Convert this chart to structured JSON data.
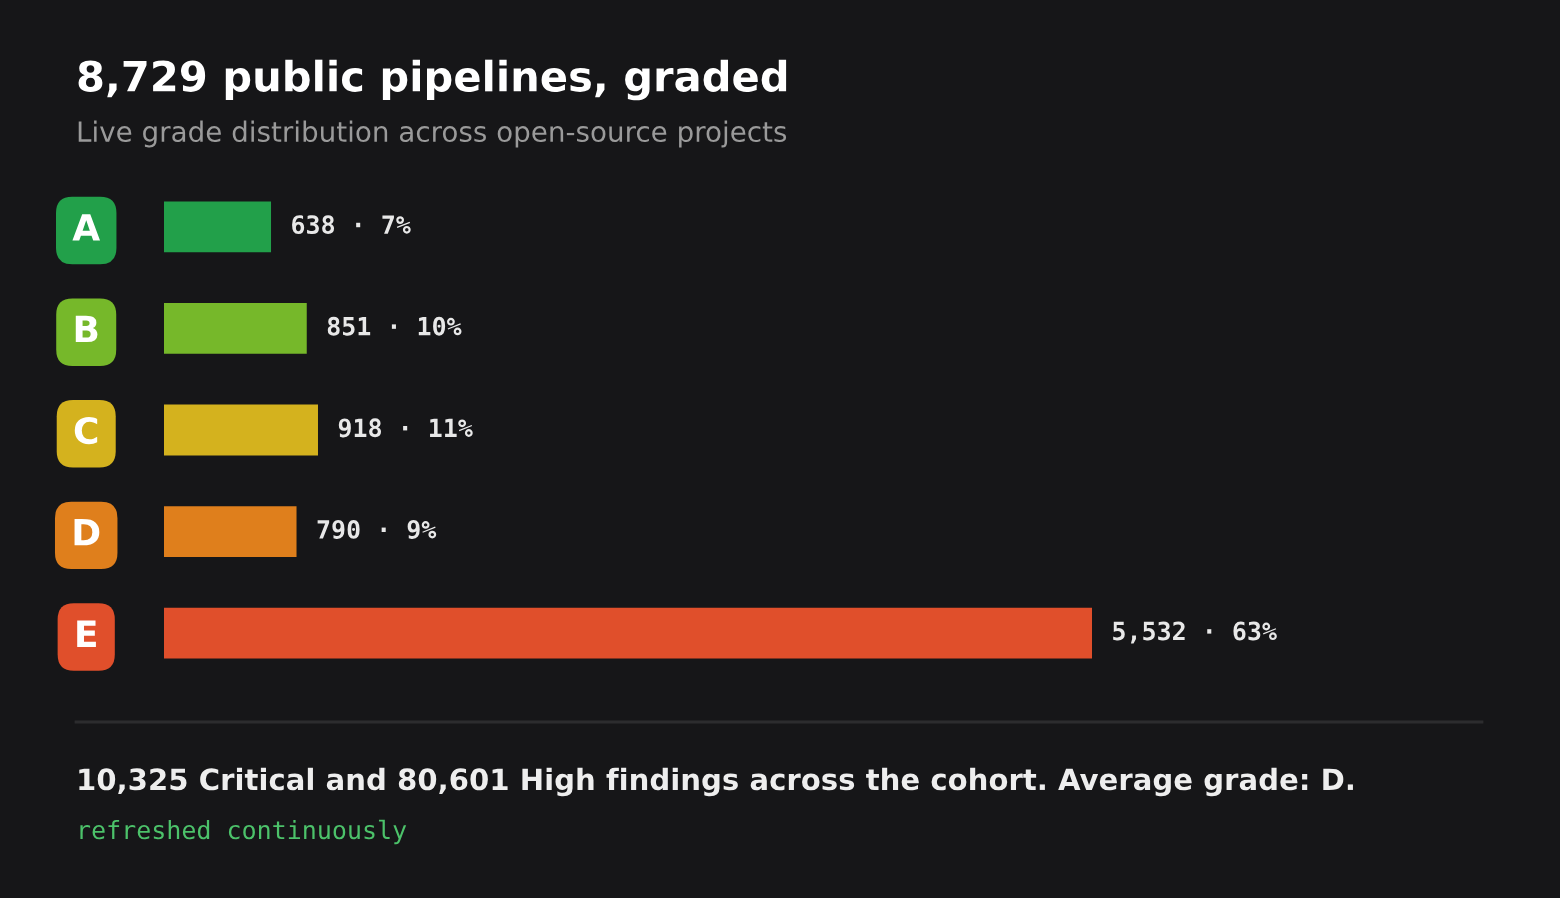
{
  "chart_data": {
    "type": "bar",
    "orientation": "horizontal",
    "title": "8,729 public pipelines, graded",
    "subtitle": "Live grade distribution across open-source projects",
    "categories": [
      "A",
      "B",
      "C",
      "D",
      "E"
    ],
    "values": [
      638,
      851,
      918,
      790,
      5532
    ],
    "colors": [
      "#22a04a",
      "#76b82a",
      "#d4b21e",
      "#df7f1c",
      "#e04f2b"
    ],
    "value_labels": [
      "638 · 7%",
      "851 · 10%",
      "918 · 11%",
      "790 · 9%",
      "5,532 · 63%"
    ],
    "annotations": [
      "10,325 Critical and 80,601 High findings across the cohort. Average grade: D.",
      "refreshed continuously"
    ]
  }
}
